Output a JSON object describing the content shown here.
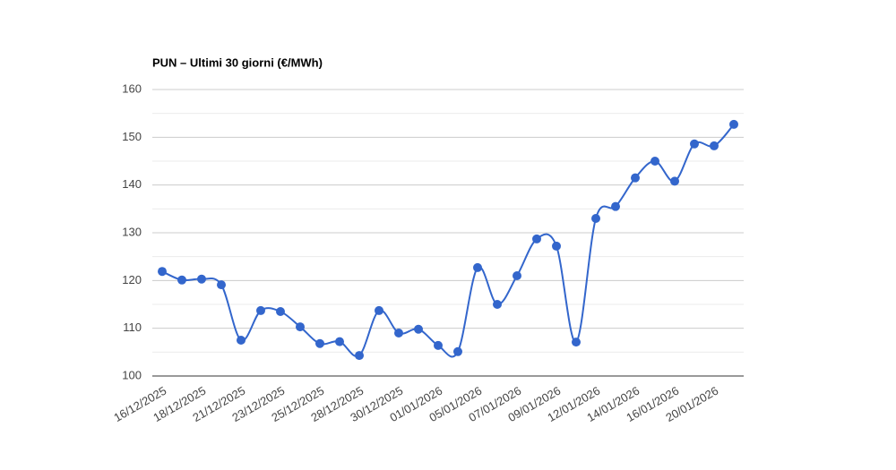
{
  "chart_data": {
    "type": "line",
    "title": "PUN – Ultimi 30 giorni (€/MWh)",
    "categories": [
      "16/12/2025",
      null,
      "18/12/2025",
      null,
      "21/12/2025",
      null,
      "23/12/2025",
      null,
      "25/12/2025",
      null,
      "28/12/2025",
      null,
      "30/12/2025",
      null,
      "01/01/2026",
      null,
      "05/01/2026",
      null,
      "07/01/2026",
      null,
      "09/01/2026",
      null,
      "12/01/2026",
      null,
      "14/01/2026",
      null,
      "16/01/2026",
      null,
      "20/01/2026",
      null
    ],
    "values": [
      121.9,
      120.1,
      120.3,
      119.1,
      107.5,
      113.7,
      113.5,
      110.3,
      106.8,
      107.2,
      104.3,
      113.7,
      109.0,
      109.8,
      106.4,
      105.1,
      122.7,
      115.0,
      121.0,
      128.7,
      127.2,
      107.1,
      133.0,
      135.5,
      141.5,
      145.0,
      140.8,
      148.6,
      148.2,
      152.7
    ],
    "color": "#3366cc",
    "ylim": [
      100,
      160
    ],
    "yticks": [
      100,
      110,
      120,
      130,
      140,
      150,
      160
    ],
    "grid": true,
    "smooth": true
  }
}
